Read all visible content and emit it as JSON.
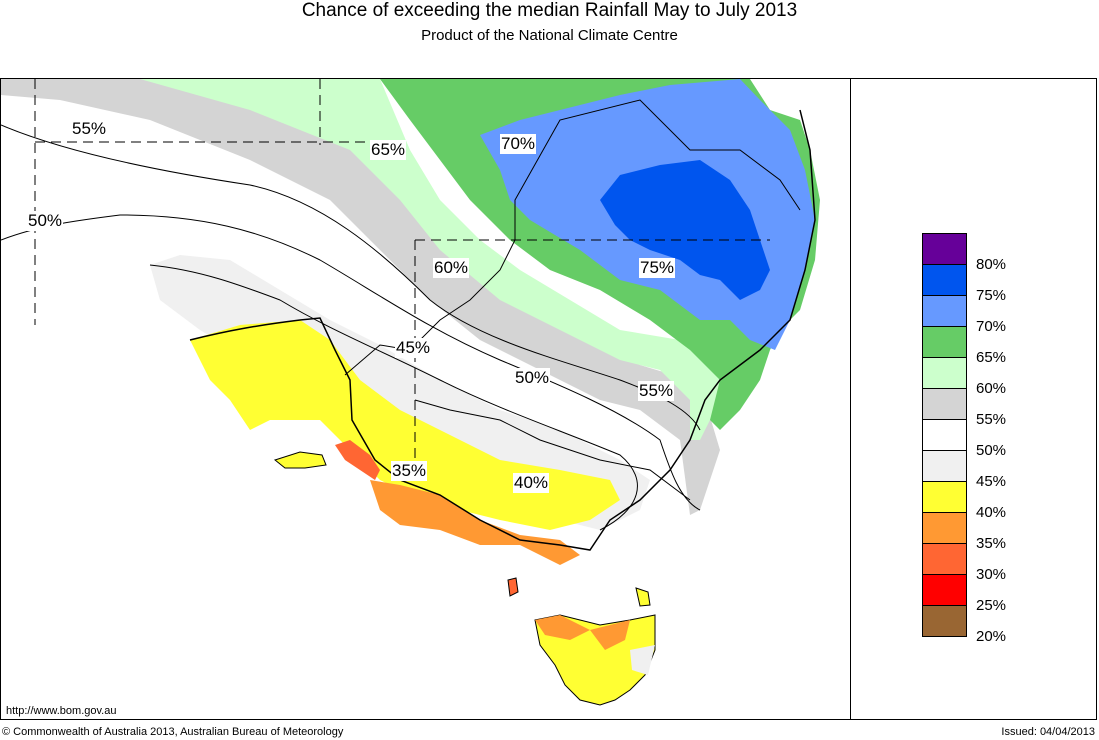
{
  "title": "Chance of exceeding the median Rainfall May to July 2013",
  "subtitle": "Product of the National Climate Centre",
  "url": "http://www.bom.gov.au",
  "copyright": "© Commonwealth of Australia 2013, Australian Bureau of Meteorology",
  "issued": "Issued: 04/04/2013",
  "legend": [
    {
      "label": "80%",
      "color": "#660099"
    },
    {
      "label": "75%",
      "color": "#0055ee"
    },
    {
      "label": "70%",
      "color": "#6699ff"
    },
    {
      "label": "65%",
      "color": "#66cc66"
    },
    {
      "label": "60%",
      "color": "#ccffcc"
    },
    {
      "label": "55%",
      "color": "#d4d4d4"
    },
    {
      "label": "50%",
      "color": "#ffffff"
    },
    {
      "label": "45%",
      "color": "#f0f0f0"
    },
    {
      "label": "40%",
      "color": "#ffff33"
    },
    {
      "label": "35%",
      "color": "#ff9933"
    },
    {
      "label": "30%",
      "color": "#ff6633"
    },
    {
      "label": "25%",
      "color": "#ff0000"
    },
    {
      "label": "20%",
      "color": "#996633"
    }
  ],
  "map_labels": {
    "l55a": "55%",
    "l50a": "50%",
    "l65": "65%",
    "l70": "70%",
    "l75": "75%",
    "l60": "60%",
    "l45": "45%",
    "l50b": "50%",
    "l55b": "55%",
    "l35": "35%",
    "l40": "40%"
  }
}
